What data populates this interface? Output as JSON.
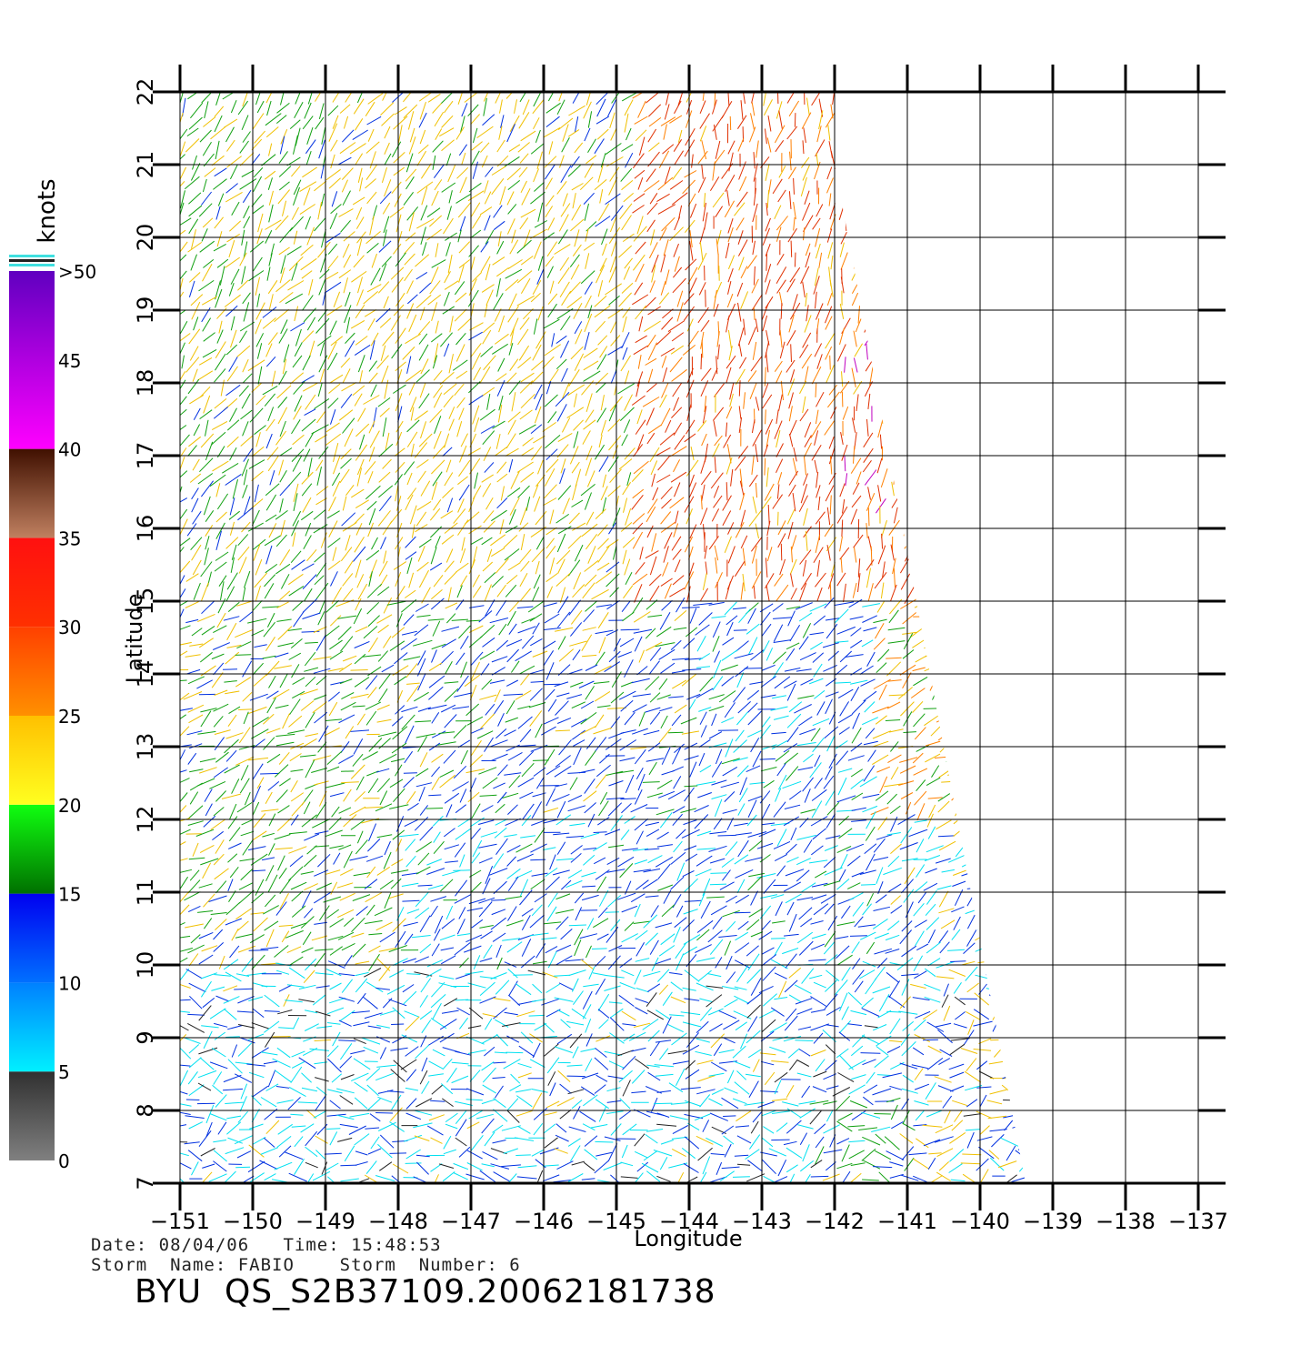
{
  "map": {
    "xlabel": "Longitude",
    "ylabel": "Latitude",
    "lon_ticks": [
      "-151",
      "-150",
      "-149",
      "-148",
      "-147",
      "-146",
      "-145",
      "-144",
      "-143",
      "-142",
      "-141",
      "-140",
      "-139",
      "-138",
      "-137"
    ],
    "lat_ticks": [
      "7",
      "8",
      "9",
      "10",
      "11",
      "12",
      "13",
      "14",
      "15",
      "16",
      "17",
      "18",
      "19",
      "20",
      "21",
      "22"
    ],
    "lon_range": [
      -151,
      -137
    ],
    "lat_range": [
      7,
      22
    ],
    "grid": true
  },
  "legend": {
    "title": "knots",
    "labels": [
      "0",
      "5",
      "10",
      "15",
      "20",
      "25",
      "30",
      "35",
      "40",
      "45",
      ">50"
    ],
    "bands": [
      {
        "from": 0,
        "to": 5,
        "colors": [
          "#808080",
          "#303030"
        ]
      },
      {
        "from": 5,
        "to": 10,
        "colors": [
          "#00f0ff",
          "#0080ff"
        ]
      },
      {
        "from": 10,
        "to": 15,
        "colors": [
          "#0070ff",
          "#0000f0"
        ]
      },
      {
        "from": 15,
        "to": 20,
        "colors": [
          "#007000",
          "#10ff10"
        ]
      },
      {
        "from": 20,
        "to": 25,
        "colors": [
          "#ffff20",
          "#ffc000"
        ]
      },
      {
        "from": 25,
        "to": 30,
        "colors": [
          "#ff9000",
          "#ff4000"
        ]
      },
      {
        "from": 30,
        "to": 35,
        "colors": [
          "#ff3000",
          "#ff1010"
        ]
      },
      {
        "from": 35,
        "to": 40,
        "colors": [
          "#c08060",
          "#401000"
        ]
      },
      {
        "from": 40,
        "to": 50,
        "colors": [
          "#ff00ff",
          "#6000c0"
        ]
      }
    ]
  },
  "swath": {
    "description_colors": {
      "calm": "#222222",
      "light": "#00e0f0",
      "moderate": "#0030e0",
      "fresh": "#10a010",
      "strong": "#f0c000",
      "gale": "#e03000",
      "high": "#c000c0"
    }
  },
  "footer": {
    "line1": "Date: 08/04/06   Time: 15:48:53",
    "line2": "Storm  Name: FABIO    Storm  Number: 6",
    "title": "BYU  QS_S2B37109.20062181738"
  }
}
